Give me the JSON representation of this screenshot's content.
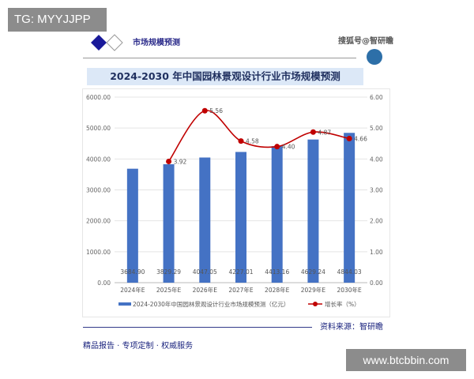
{
  "overlay": {
    "top_left": "TG: MYYJJPP",
    "bottom_right": "www.btcbbin.com"
  },
  "header": {
    "section": "市场规模预测",
    "watermark": "搜狐号@智研瞻",
    "title": "2024-2030 年中国园林景观设计行业市场规模预测"
  },
  "footer": {
    "source": "资料来源：智研瞻",
    "tagline": "精品报告 · 专项定制 · 权威服务"
  },
  "colors": {
    "bar": "#4472c4",
    "line": "#c00000",
    "section": "#1a1a9a"
  },
  "chart_data": {
    "type": "bar+line",
    "title": "2024-2030 年中国园林景观设计行业市场规模预测",
    "categories": [
      "2024年E",
      "2025年E",
      "2026年E",
      "2027年E",
      "2028年E",
      "2029年E",
      "2030年E"
    ],
    "series": [
      {
        "name": "2024-2030年中国园林景观设计行业市场规模预测（亿元）",
        "type": "bar",
        "axis": "left",
        "values": [
          3684.9,
          3829.29,
          4047.05,
          4227.01,
          4413.16,
          4629.24,
          4844.03
        ],
        "labels": [
          "3684.90",
          "3829.29",
          "4047.05",
          "4227.01",
          "4413.16",
          "4629.24",
          "4844.03"
        ]
      },
      {
        "name": "增长率（%）",
        "type": "line",
        "axis": "right",
        "values": [
          null,
          3.92,
          5.56,
          4.58,
          4.4,
          4.87,
          4.66
        ],
        "labels": [
          "",
          "3.92",
          "5.56",
          "4.58",
          "4.40",
          "4.87",
          "4.66"
        ]
      }
    ],
    "left_axis": {
      "range": [
        0,
        6000
      ],
      "ticks": [
        "0.00",
        "1000.00",
        "2000.00",
        "3000.00",
        "4000.00",
        "5000.00",
        "6000.00"
      ]
    },
    "right_axis": {
      "range": [
        0,
        6
      ],
      "ticks": [
        "0.00",
        "1.00",
        "2.00",
        "3.00",
        "4.00",
        "5.00",
        "6.00"
      ]
    },
    "grid": true,
    "legend": "bottom"
  }
}
